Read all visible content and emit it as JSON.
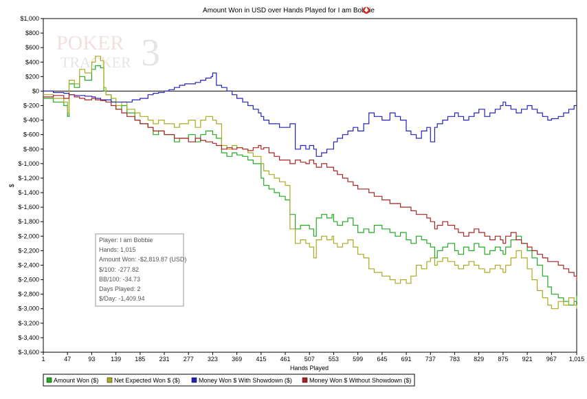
{
  "chart_data": {
    "type": "line",
    "title": "Amount Won in USD over Hands Played for I am Bobbie",
    "xlabel": "Hands Played",
    "ylabel": "$",
    "xlim": [
      1,
      1015
    ],
    "ylim": [
      -3600,
      1000
    ],
    "x_ticks": [
      "1",
      "47",
      "93",
      "139",
      "185",
      "231",
      "277",
      "323",
      "369",
      "415",
      "461",
      "507",
      "553",
      "599",
      "645",
      "691",
      "737",
      "783",
      "829",
      "875",
      "921",
      "967",
      "1,015"
    ],
    "x_tick_values": [
      1,
      47,
      93,
      139,
      185,
      231,
      277,
      323,
      369,
      415,
      461,
      507,
      553,
      599,
      645,
      691,
      737,
      783,
      829,
      875,
      921,
      967,
      1015
    ],
    "y_ticks": [
      "$1,000",
      "$800",
      "$600",
      "$400",
      "$200",
      "$0",
      "$-200",
      "$-400",
      "$-600",
      "$-800",
      "$-1,000",
      "$-1,200",
      "$-1,400",
      "$-1,600",
      "$-1,800",
      "$-2,000",
      "$-2,200",
      "$-2,400",
      "$-2,600",
      "$-2,800",
      "$-3,000",
      "$-3,200",
      "$-3,400",
      "$-3,600"
    ],
    "y_tick_values": [
      1000,
      800,
      600,
      400,
      200,
      0,
      -200,
      -400,
      -600,
      -800,
      -1000,
      -1200,
      -1400,
      -1600,
      -1800,
      -2000,
      -2200,
      -2400,
      -2600,
      -2800,
      -3000,
      -3200,
      -3400,
      -3600
    ],
    "grid": false,
    "legend_placement": "bottom",
    "watermark": "POKER TRACKER 3",
    "series": [
      {
        "name": "Amount Won ($)",
        "color": "#22aa22",
        "x": [
          1,
          20,
          40,
          47,
          50,
          60,
          70,
          80,
          93,
          100,
          110,
          116,
          120,
          130,
          139,
          150,
          160,
          175,
          185,
          200,
          210,
          220,
          231,
          250,
          260,
          277,
          290,
          300,
          310,
          323,
          330,
          340,
          350,
          360,
          369,
          380,
          390,
          400,
          415,
          420,
          430,
          440,
          450,
          461,
          470,
          480,
          490,
          500,
          507,
          515,
          520,
          530,
          540,
          550,
          553,
          560,
          570,
          580,
          590,
          599,
          610,
          620,
          630,
          645,
          660,
          670,
          680,
          691,
          700,
          710,
          720,
          730,
          737,
          745,
          750,
          760,
          770,
          783,
          790,
          800,
          810,
          820,
          829,
          840,
          850,
          860,
          870,
          875,
          880,
          890,
          900,
          910,
          921,
          930,
          940,
          950,
          960,
          967,
          980,
          990,
          1000,
          1010,
          1015
        ],
        "y": [
          -100,
          -150,
          -200,
          -350,
          100,
          50,
          200,
          150,
          300,
          350,
          320,
          0,
          -50,
          -150,
          -250,
          -200,
          -300,
          -400,
          -450,
          -500,
          -600,
          -550,
          -600,
          -700,
          -650,
          -600,
          -700,
          -600,
          -550,
          -600,
          -650,
          -850,
          -900,
          -850,
          -880,
          -900,
          -950,
          -1000,
          -1200,
          -1300,
          -1350,
          -1400,
          -1450,
          -1500,
          -1700,
          -1900,
          -1850,
          -1850,
          -1900,
          -2000,
          -1750,
          -1700,
          -1750,
          -1700,
          -1800,
          -1850,
          -1800,
          -1750,
          -1850,
          -1950,
          -1900,
          -1950,
          -1850,
          -1900,
          -1950,
          -2000,
          -1950,
          -2050,
          -2100,
          -2000,
          -2050,
          -2100,
          -2150,
          -2300,
          -2200,
          -2150,
          -2100,
          -2200,
          -2250,
          -2150,
          -2200,
          -2100,
          -2150,
          -2250,
          -2200,
          -2150,
          -2200,
          -2250,
          -2150,
          -2050,
          -2000,
          -2100,
          -2200,
          -2300,
          -2400,
          -2550,
          -2700,
          -2800,
          -2850,
          -2900,
          -2950,
          -2900,
          -2819.87
        ]
      },
      {
        "name": "Net Expected Won $ ($)",
        "color": "#aaaa22",
        "x": [
          1,
          20,
          40,
          47,
          50,
          60,
          70,
          80,
          93,
          100,
          110,
          116,
          120,
          130,
          139,
          150,
          160,
          175,
          185,
          200,
          210,
          220,
          231,
          250,
          260,
          277,
          290,
          300,
          310,
          323,
          330,
          340,
          350,
          360,
          369,
          380,
          390,
          400,
          415,
          420,
          430,
          440,
          450,
          461,
          470,
          480,
          490,
          500,
          507,
          515,
          520,
          530,
          540,
          550,
          553,
          560,
          570,
          580,
          590,
          599,
          610,
          620,
          630,
          645,
          660,
          670,
          680,
          691,
          700,
          710,
          720,
          730,
          737,
          745,
          750,
          760,
          770,
          783,
          790,
          800,
          810,
          820,
          829,
          840,
          850,
          860,
          870,
          875,
          880,
          890,
          900,
          910,
          921,
          930,
          940,
          950,
          960,
          967,
          980,
          990,
          1000,
          1010,
          1015
        ],
        "y": [
          -50,
          -100,
          -150,
          -300,
          150,
          100,
          300,
          250,
          400,
          480,
          420,
          50,
          -50,
          -100,
          -200,
          -150,
          -250,
          -300,
          -350,
          -400,
          -450,
          -400,
          -450,
          -500,
          -450,
          -400,
          -500,
          -400,
          -350,
          -400,
          -450,
          -750,
          -800,
          -750,
          -780,
          -800,
          -850,
          -900,
          -1000,
          -1100,
          -1150,
          -1200,
          -1250,
          -1300,
          -1900,
          -2100,
          -2050,
          -2100,
          -2150,
          -2300,
          -2050,
          -2000,
          -2050,
          -2000,
          -2100,
          -2150,
          -2100,
          -2050,
          -2150,
          -2250,
          -2300,
          -2450,
          -2500,
          -2550,
          -2600,
          -2650,
          -2600,
          -2650,
          -2550,
          -2400,
          -2450,
          -2350,
          -2300,
          -2400,
          -2350,
          -2300,
          -2350,
          -2400,
          -2450,
          -2400,
          -2350,
          -2400,
          -2450,
          -2500,
          -2450,
          -2400,
          -2450,
          -2500,
          -2400,
          -2300,
          -2200,
          -2300,
          -2450,
          -2600,
          -2750,
          -2850,
          -2950,
          -3000,
          -2900,
          -2950,
          -2850,
          -2950,
          -3000
        ]
      },
      {
        "name": "Money Won $ With Showdown ($)",
        "color": "#2222bb",
        "x": [
          1,
          20,
          40,
          50,
          60,
          70,
          80,
          93,
          100,
          110,
          130,
          150,
          170,
          185,
          200,
          210,
          220,
          231,
          240,
          250,
          260,
          270,
          277,
          290,
          300,
          310,
          320,
          323,
          330,
          340,
          350,
          360,
          369,
          380,
          390,
          400,
          410,
          415,
          420,
          430,
          440,
          450,
          461,
          470,
          480,
          490,
          500,
          507,
          515,
          520,
          530,
          540,
          553,
          560,
          570,
          580,
          590,
          599,
          610,
          620,
          630,
          645,
          660,
          670,
          680,
          691,
          700,
          710,
          720,
          730,
          737,
          745,
          750,
          760,
          770,
          783,
          790,
          800,
          810,
          820,
          829,
          840,
          850,
          860,
          870,
          875,
          880,
          890,
          900,
          910,
          921,
          930,
          940,
          950,
          960,
          967,
          980,
          990,
          1000,
          1010,
          1015
        ],
        "y": [
          0,
          -20,
          -30,
          -50,
          -60,
          -60,
          -70,
          -80,
          -100,
          -120,
          -150,
          -150,
          -120,
          -100,
          -50,
          -30,
          -20,
          0,
          20,
          50,
          80,
          100,
          100,
          120,
          150,
          180,
          200,
          250,
          80,
          50,
          0,
          -50,
          -100,
          -150,
          -200,
          -250,
          -300,
          -350,
          -400,
          -450,
          -450,
          -500,
          -500,
          -450,
          -800,
          -750,
          -800,
          -750,
          -800,
          -900,
          -850,
          -800,
          -700,
          -650,
          -600,
          -550,
          -500,
          -550,
          -450,
          -300,
          -350,
          -400,
          -300,
          -350,
          -400,
          -550,
          -600,
          -650,
          -550,
          -500,
          -700,
          -500,
          -450,
          -400,
          -350,
          -300,
          -350,
          -400,
          -350,
          -300,
          -250,
          -350,
          -300,
          -250,
          -200,
          -150,
          -200,
          -250,
          -300,
          -250,
          -200,
          -250,
          -300,
          -350,
          -400,
          -380,
          -350,
          -300,
          -250,
          -200,
          -200
        ]
      },
      {
        "name": "Money Won $ Without Showdown ($)",
        "color": "#aa2222",
        "x": [
          1,
          20,
          40,
          50,
          60,
          70,
          80,
          93,
          100,
          110,
          120,
          130,
          139,
          150,
          160,
          175,
          185,
          200,
          210,
          220,
          231,
          250,
          260,
          277,
          290,
          300,
          310,
          323,
          330,
          340,
          350,
          360,
          369,
          380,
          390,
          400,
          410,
          415,
          420,
          430,
          440,
          450,
          461,
          470,
          480,
          490,
          500,
          507,
          515,
          520,
          530,
          540,
          553,
          560,
          570,
          580,
          590,
          599,
          610,
          620,
          630,
          645,
          660,
          670,
          680,
          691,
          700,
          710,
          720,
          730,
          737,
          745,
          750,
          760,
          770,
          783,
          790,
          800,
          810,
          820,
          829,
          840,
          850,
          860,
          870,
          875,
          880,
          890,
          900,
          910,
          921,
          930,
          940,
          950,
          960,
          967,
          980,
          990,
          1000,
          1010,
          1015
        ],
        "y": [
          -80,
          -60,
          -100,
          -50,
          -80,
          -100,
          -120,
          -100,
          -120,
          -130,
          -150,
          -200,
          -250,
          -300,
          -350,
          -400,
          -450,
          -500,
          -550,
          -550,
          -600,
          -650,
          -650,
          -700,
          -650,
          -680,
          -700,
          -720,
          -750,
          -800,
          -780,
          -800,
          -780,
          -800,
          -820,
          -780,
          -750,
          -800,
          -780,
          -850,
          -900,
          -950,
          -950,
          -1000,
          -950,
          -980,
          -1000,
          -950,
          -1000,
          -1050,
          -1000,
          -1050,
          -1100,
          -1150,
          -1200,
          -1250,
          -1300,
          -1350,
          -1350,
          -1400,
          -1450,
          -1500,
          -1550,
          -1550,
          -1600,
          -1600,
          -1650,
          -1700,
          -1700,
          -1750,
          -1800,
          -1900,
          -1850,
          -1800,
          -1850,
          -1900,
          -1950,
          -2000,
          -1950,
          -1900,
          -1950,
          -2000,
          -2050,
          -2000,
          -2050,
          -2100,
          -2000,
          -1950,
          -2050,
          -2100,
          -2150,
          -2200,
          -2250,
          -2300,
          -2350,
          -2350,
          -2400,
          -2450,
          -2500,
          -2550,
          -2620
        ]
      }
    ],
    "stats_box": {
      "player": "Player: I am Bobbie",
      "hands": "Hands: 1,015",
      "amount_won": "Amount Won: -$2,819.87 (USD)",
      "per100": "$/100: -277.82",
      "bb100": "BB/100: -34.73",
      "days": "Days Played: 2",
      "per_day": "$/Day: -1,409.94"
    }
  }
}
